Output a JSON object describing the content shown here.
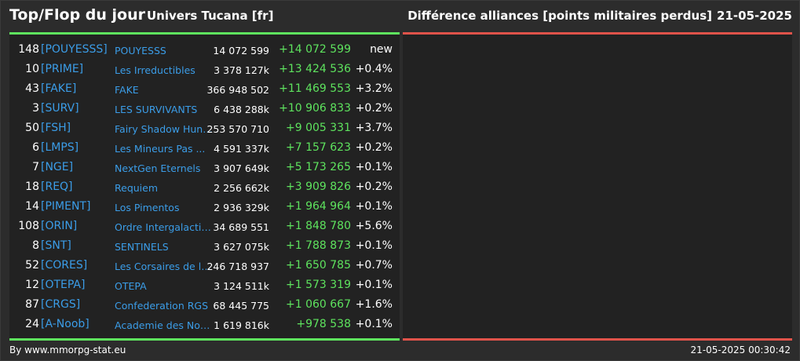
{
  "header": {
    "title": "Top/Flop du jour",
    "subtitle": "Univers Tucana [fr]",
    "right_title": "Différence alliances [points militaires perdus]",
    "date": "21-05-2025"
  },
  "colors": {
    "background": "#2c2c2c",
    "panel": "#222222",
    "top_accent": "#5ee35e",
    "flop_accent": "#e0534a",
    "tag_color": "#3b9de8"
  },
  "top": {
    "rows": [
      {
        "rank": "148",
        "tag": "[POUYESSS]",
        "name": "POUYESSS",
        "points": "14 072 599",
        "diff": "+14 072 599",
        "pct": "new"
      },
      {
        "rank": "10",
        "tag": "[PRIME]",
        "name": "Les Irreductibles",
        "points": "3 378 127k",
        "diff": "+13 424 536",
        "pct": "+0.4%"
      },
      {
        "rank": "43",
        "tag": "[FAKE]",
        "name": "FAKE",
        "points": "366 948 502",
        "diff": "+11 469 553",
        "pct": "+3.2%"
      },
      {
        "rank": "3",
        "tag": "[SURV]",
        "name": "LES SURVIVANTS",
        "points": "6 438 288k",
        "diff": "+10 906 833",
        "pct": "+0.2%"
      },
      {
        "rank": "50",
        "tag": "[FSH]",
        "name": "Fairy Shadow Hunte...",
        "points": "253 570 710",
        "diff": "+9 005 331",
        "pct": "+3.7%"
      },
      {
        "rank": "6",
        "tag": "[LMPS]",
        "name": "Les Mineurs Pas ...",
        "points": "4 591 337k",
        "diff": "+7 157 623",
        "pct": "+0.2%"
      },
      {
        "rank": "7",
        "tag": "[NGE]",
        "name": "NextGen Eternels",
        "points": "3 907 649k",
        "diff": "+5 173 265",
        "pct": "+0.1%"
      },
      {
        "rank": "18",
        "tag": "[REQ]",
        "name": "Requiem",
        "points": "2 256 662k",
        "diff": "+3 909 826",
        "pct": "+0.2%"
      },
      {
        "rank": "14",
        "tag": "[PIMENT]",
        "name": "Los Pimentos",
        "points": "2 936 329k",
        "diff": "+1 964 964",
        "pct": "+0.1%"
      },
      {
        "rank": "108",
        "tag": "[ORIN]",
        "name": "Ordre Intergalactiqu...",
        "points": "34 689 551",
        "diff": "+1 848 780",
        "pct": "+5.6%"
      },
      {
        "rank": "8",
        "tag": "[SNT]",
        "name": "SENTINELS",
        "points": "3 627 075k",
        "diff": "+1 788 873",
        "pct": "+0.1%"
      },
      {
        "rank": "52",
        "tag": "[CORES]",
        "name": "Les Corsaires de l_...",
        "points": "246 718 937",
        "diff": "+1 650 785",
        "pct": "+0.7%"
      },
      {
        "rank": "12",
        "tag": "[OTEPA]",
        "name": "OTEPA",
        "points": "3 124 511k",
        "diff": "+1 573 319",
        "pct": "+0.1%"
      },
      {
        "rank": "87",
        "tag": "[CRGS]",
        "name": "Confederation RGS",
        "points": "68 445 775",
        "diff": "+1 060 667",
        "pct": "+1.6%"
      },
      {
        "rank": "24",
        "tag": "[A-Noob]",
        "name": "Academie des Noob...",
        "points": "1 619 816k",
        "diff": "+978 538",
        "pct": "+0.1%"
      }
    ]
  },
  "footer": {
    "credit": "By www.mmorpg-stat.eu",
    "timestamp": "21-05-2025 00:30:42"
  }
}
